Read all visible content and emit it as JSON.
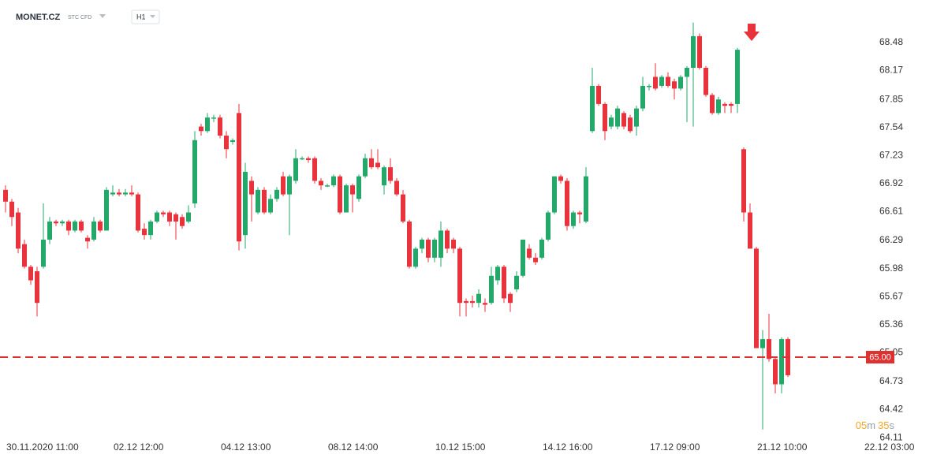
{
  "header": {
    "symbol": "MONET.CZ",
    "instrument": "STC CFD",
    "timeframe": "H1"
  },
  "countdown": [
    "05",
    "m",
    "35",
    "s"
  ],
  "chart_data": {
    "type": "candlestick",
    "up_color": "#23a86a",
    "down_color": "#e8323c",
    "x": [
      0,
      1,
      2,
      3,
      4,
      5,
      6,
      7,
      8,
      9,
      10,
      11,
      12,
      13,
      14,
      15,
      16,
      17,
      18,
      19,
      20,
      21,
      22,
      23,
      24,
      25,
      26,
      27,
      28,
      29,
      30,
      31,
      32,
      33,
      34,
      35,
      36,
      37,
      38,
      39,
      40,
      41,
      42,
      43,
      44,
      45,
      46,
      47,
      48,
      49,
      50,
      51,
      52,
      53,
      54,
      55,
      56,
      57,
      58,
      59,
      60,
      61,
      62,
      63,
      64,
      65,
      66,
      67,
      68,
      69,
      70,
      71,
      72,
      73,
      74,
      75,
      76,
      77,
      78,
      79,
      80,
      81,
      82,
      83,
      84,
      85,
      86,
      87,
      88,
      89,
      90,
      91,
      92,
      93,
      94,
      95,
      96,
      97,
      98,
      99,
      100,
      101,
      102,
      103,
      104,
      105,
      106,
      107,
      108,
      109,
      110,
      111,
      112,
      113,
      114,
      115,
      116,
      117,
      118,
      119,
      120,
      121,
      122,
      123,
      124
    ],
    "open": [
      66.85,
      66.72,
      66.6,
      66.25,
      66.0,
      65.95,
      66.0,
      66.3,
      66.5,
      66.48,
      66.5,
      66.4,
      66.5,
      66.32,
      66.3,
      66.5,
      66.4,
      66.8,
      66.82,
      66.8,
      66.82,
      66.8,
      66.42,
      66.35,
      66.5,
      66.6,
      66.6,
      66.58,
      66.55,
      66.5,
      66.7,
      67.55,
      67.5,
      67.65,
      67.65,
      67.45,
      67.38,
      67.7,
      66.35,
      66.95,
      66.6,
      66.85,
      66.6,
      66.75,
      67.0,
      66.8,
      66.95,
      67.2,
      67.2,
      67.2,
      66.95,
      66.9,
      66.9,
      67.0,
      66.6,
      66.9,
      66.75,
      67.0,
      67.2,
      67.15,
      66.9,
      67.1,
      66.95,
      66.8,
      66.5,
      66.0,
      66.2,
      66.3,
      66.1,
      66.1,
      66.4,
      66.3,
      66.2,
      65.62,
      65.62,
      65.6,
      65.6,
      65.6,
      65.85,
      66.0,
      65.7,
      65.75,
      65.9,
      66.2,
      66.1,
      66.1,
      66.3,
      66.6,
      67.0,
      66.95,
      66.45,
      66.6,
      66.5,
      67.5,
      68.0,
      67.8,
      67.55,
      67.55,
      67.7,
      67.65,
      67.55,
      67.75,
      68.0,
      68.1,
      68.0,
      68.1,
      68.05,
      67.97,
      68.1,
      68.2,
      68.55,
      68.2,
      67.9,
      67.7,
      67.8,
      67.8,
      67.8,
      67.3,
      66.6,
      66.2,
      65.1,
      65.2,
      64.98,
      64.7,
      65.2
    ],
    "high": [
      66.9,
      66.75,
      66.65,
      66.3,
      66.02,
      66.0,
      66.7,
      66.55,
      66.52,
      66.52,
      66.52,
      66.52,
      66.52,
      66.35,
      66.55,
      66.52,
      66.88,
      66.9,
      66.86,
      66.86,
      66.9,
      66.82,
      66.48,
      66.52,
      66.62,
      66.62,
      66.62,
      66.6,
      66.58,
      66.68,
      67.5,
      67.58,
      67.7,
      67.68,
      67.68,
      67.5,
      67.42,
      67.8,
      67.15,
      67.0,
      66.88,
      66.88,
      66.8,
      66.88,
      67.05,
      67.02,
      67.3,
      67.22,
      67.22,
      67.22,
      66.98,
      66.92,
      67.02,
      67.02,
      66.92,
      66.92,
      67.02,
      67.25,
      67.3,
      67.3,
      67.12,
      67.2,
      66.98,
      66.85,
      66.52,
      66.22,
      66.32,
      66.32,
      66.32,
      66.5,
      66.42,
      66.32,
      66.22,
      65.65,
      65.68,
      65.75,
      65.65,
      66.0,
      66.02,
      66.02,
      65.72,
      65.95,
      66.3,
      66.25,
      66.15,
      66.32,
      66.62,
      67.0,
      67.02,
      66.98,
      66.62,
      66.62,
      67.1,
      68.2,
      68.02,
      67.82,
      67.68,
      67.78,
      67.72,
      67.68,
      67.78,
      68.1,
      68.02,
      68.25,
      68.12,
      68.15,
      68.08,
      68.12,
      68.22,
      68.7,
      68.58,
      68.22,
      67.92,
      67.88,
      67.82,
      67.82,
      68.42,
      67.32,
      66.7,
      66.22,
      65.3,
      65.48,
      65.0,
      65.22,
      65.22
    ],
    "low": [
      66.6,
      66.45,
      66.15,
      65.98,
      65.8,
      65.45,
      65.98,
      66.25,
      66.45,
      66.45,
      66.35,
      66.38,
      66.38,
      66.2,
      66.28,
      66.38,
      66.4,
      66.78,
      66.78,
      66.78,
      66.78,
      66.38,
      66.3,
      66.3,
      66.48,
      66.55,
      66.45,
      66.3,
      66.42,
      66.48,
      66.65,
      67.45,
      67.48,
      67.6,
      67.42,
      67.2,
      67.35,
      66.18,
      66.2,
      66.5,
      66.58,
      66.58,
      66.58,
      66.72,
      66.78,
      66.35,
      66.92,
      67.18,
      67.15,
      66.92,
      66.85,
      66.88,
      66.88,
      66.58,
      66.6,
      66.6,
      66.72,
      66.98,
      67.08,
      67.08,
      66.8,
      66.92,
      66.78,
      66.48,
      65.98,
      65.98,
      66.15,
      66.05,
      66.05,
      66.0,
      66.15,
      66.15,
      65.45,
      65.45,
      65.55,
      65.55,
      65.5,
      65.58,
      65.8,
      65.6,
      65.5,
      65.72,
      65.88,
      66.08,
      66.02,
      66.08,
      66.28,
      66.58,
      66.92,
      66.4,
      66.42,
      66.48,
      66.48,
      67.48,
      67.78,
      67.4,
      67.52,
      67.52,
      67.52,
      67.48,
      67.45,
      67.72,
      67.95,
      67.95,
      67.98,
      67.98,
      67.85,
      67.95,
      67.6,
      67.55,
      68.18,
      67.88,
      67.68,
      67.68,
      67.7,
      67.7,
      67.7,
      66.5,
      66.2,
      65.1,
      64.2,
      64.95,
      64.6,
      64.6,
      64.78
    ],
    "close": [
      66.72,
      66.55,
      66.2,
      66.0,
      65.85,
      65.6,
      66.3,
      66.5,
      66.48,
      66.5,
      66.4,
      66.5,
      66.4,
      66.28,
      66.5,
      66.4,
      66.85,
      66.82,
      66.8,
      66.82,
      66.8,
      66.4,
      66.35,
      66.5,
      66.6,
      66.58,
      66.5,
      66.5,
      66.45,
      66.6,
      67.4,
      67.5,
      67.65,
      67.65,
      67.45,
      67.3,
      67.4,
      66.28,
      67.05,
      66.8,
      66.85,
      66.6,
      66.75,
      66.85,
      66.8,
      67.0,
      67.2,
      67.2,
      67.18,
      66.95,
      66.9,
      66.9,
      67.0,
      66.6,
      66.9,
      66.8,
      67.0,
      67.2,
      67.1,
      67.1,
      67.1,
      66.95,
      66.8,
      66.5,
      66.0,
      66.2,
      66.3,
      66.1,
      66.3,
      66.4,
      66.2,
      66.2,
      65.6,
      65.6,
      65.6,
      65.7,
      65.58,
      65.9,
      66.0,
      65.65,
      65.6,
      65.9,
      66.3,
      66.1,
      66.05,
      66.3,
      66.6,
      67.0,
      66.95,
      66.45,
      66.6,
      66.58,
      67.0,
      68.0,
      67.8,
      67.5,
      67.65,
      67.75,
      67.55,
      67.5,
      67.75,
      68.0,
      68.0,
      67.97,
      68.1,
      68.0,
      67.97,
      68.1,
      68.2,
      68.55,
      68.2,
      67.9,
      67.7,
      67.85,
      67.78,
      67.78,
      68.4,
      66.6,
      66.2,
      65.1,
      65.2,
      64.98,
      64.7,
      65.2,
      64.8
    ],
    "xlim": [
      -0.875,
      140.5
    ],
    "xticks": [
      {
        "value": 0,
        "label": "30.11.2020  11:00"
      },
      {
        "value": 17,
        "label": "02.12  12:00"
      },
      {
        "value": 34,
        "label": "04.12  13:00"
      },
      {
        "value": 51,
        "label": "08.12  14:00"
      },
      {
        "value": 68,
        "label": "10.12  15:00"
      },
      {
        "value": 85,
        "label": "14.12  16:00"
      },
      {
        "value": 102,
        "label": "17.12  09:00"
      },
      {
        "value": 119,
        "label": "21.12  10:00"
      },
      {
        "value": 136,
        "label": "22.12  03:00"
      }
    ],
    "ylim": [
      63.98,
      68.95
    ],
    "yticks": [
      68.48,
      68.17,
      67.85,
      67.54,
      67.23,
      66.92,
      66.61,
      66.29,
      65.98,
      65.67,
      65.36,
      65.05,
      64.73,
      64.42,
      64.11
    ],
    "price_line": {
      "value": 65,
      "value_label": "65.00",
      "color": "#e03131"
    }
  }
}
